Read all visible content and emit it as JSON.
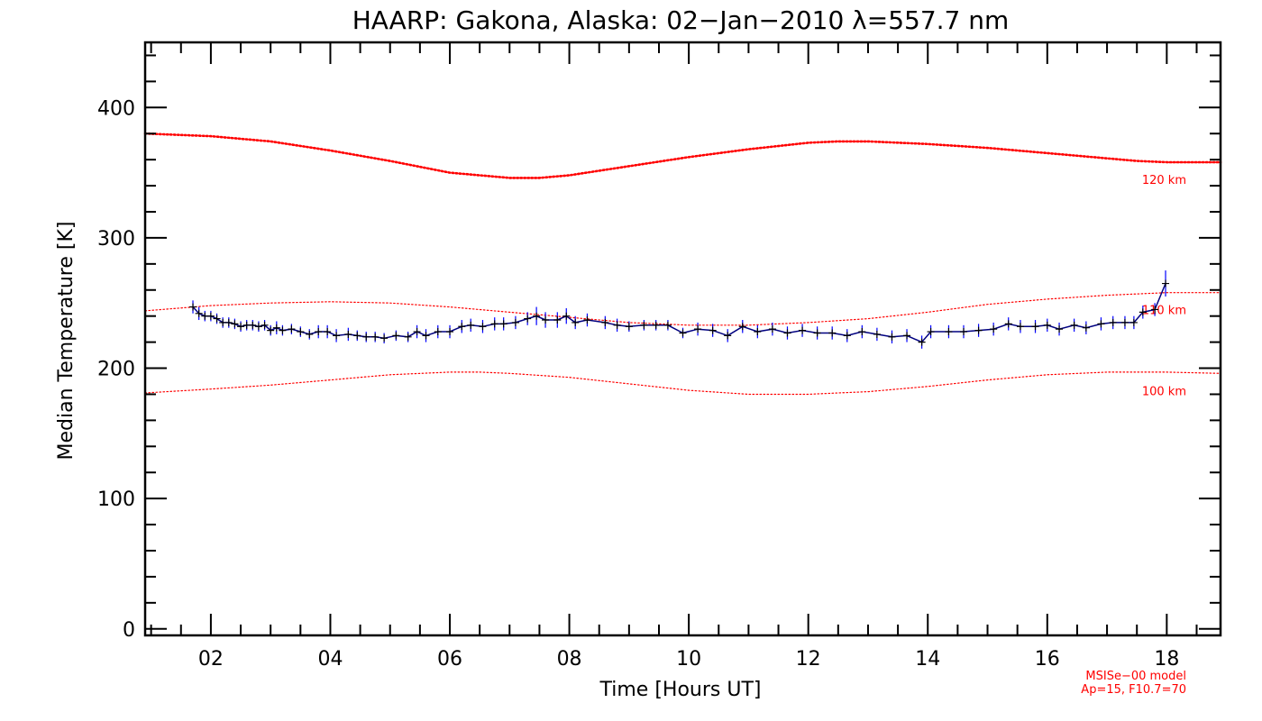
{
  "chart_data": {
    "type": "line",
    "title": "HAARP: Gakona,  Alaska: 02−Jan−2010 λ=557.7 nm",
    "xlabel": "Time [Hours UT]",
    "ylabel": "Median Temperature [K]",
    "xlim": [
      0.9,
      18.9
    ],
    "ylim": [
      -5,
      450
    ],
    "x_ticks": [
      2,
      4,
      6,
      8,
      10,
      12,
      14,
      16,
      18
    ],
    "x_tick_labels": [
      "02",
      "04",
      "06",
      "08",
      "10",
      "12",
      "14",
      "16",
      "18"
    ],
    "y_ticks": [
      0,
      100,
      200,
      300,
      400
    ],
    "y_tick_labels": [
      "0",
      "100",
      "200",
      "300",
      "400"
    ],
    "colors": {
      "measured": "#000080",
      "error": "#0000ff",
      "model": "#ff0000",
      "axes": "#000000"
    },
    "measured": {
      "x": [
        1.7,
        1.8,
        1.9,
        2.0,
        2.1,
        2.2,
        2.3,
        2.4,
        2.5,
        2.6,
        2.7,
        2.8,
        2.9,
        3.0,
        3.1,
        3.2,
        3.35,
        3.5,
        3.65,
        3.8,
        3.95,
        4.1,
        4.3,
        4.45,
        4.6,
        4.75,
        4.9,
        5.1,
        5.3,
        5.45,
        5.6,
        5.8,
        6.0,
        6.2,
        6.35,
        6.55,
        6.75,
        6.9,
        7.1,
        7.3,
        7.45,
        7.6,
        7.8,
        7.95,
        8.1,
        8.3,
        8.6,
        8.8,
        9.0,
        9.25,
        9.45,
        9.65,
        9.9,
        10.15,
        10.4,
        10.65,
        10.9,
        11.15,
        11.4,
        11.65,
        11.9,
        12.15,
        12.4,
        12.65,
        12.9,
        13.15,
        13.4,
        13.65,
        13.9,
        14.05,
        14.35,
        14.6,
        14.85,
        15.1,
        15.35,
        15.55,
        15.8,
        16.0,
        16.2,
        16.45,
        16.65,
        16.9,
        17.1,
        17.3,
        17.45,
        17.6,
        17.8,
        17.98
      ],
      "y": [
        247,
        242,
        240,
        240,
        238,
        235,
        235,
        234,
        232,
        233,
        233,
        232,
        233,
        229,
        231,
        229,
        230,
        228,
        226,
        228,
        228,
        225,
        226,
        225,
        224,
        224,
        223,
        225,
        224,
        228,
        225,
        228,
        228,
        232,
        233,
        232,
        234,
        234,
        235,
        238,
        240,
        237,
        237,
        240,
        235,
        237,
        235,
        233,
        232,
        233,
        233,
        233,
        227,
        230,
        229,
        225,
        232,
        228,
        230,
        227,
        229,
        227,
        227,
        225,
        228,
        226,
        224,
        225,
        220,
        228,
        228,
        228,
        229,
        230,
        234,
        232,
        232,
        233,
        230,
        233,
        231,
        234,
        235,
        235,
        235,
        243,
        245,
        265
      ],
      "err": [
        5,
        5,
        4,
        4,
        4,
        4,
        4,
        4,
        4,
        4,
        4,
        4,
        4,
        4,
        5,
        4,
        4,
        4,
        4,
        5,
        5,
        5,
        5,
        4,
        4,
        4,
        4,
        4,
        4,
        5,
        5,
        5,
        5,
        5,
        5,
        5,
        5,
        5,
        5,
        5,
        7,
        6,
        6,
        6,
        5,
        5,
        5,
        5,
        4,
        4,
        4,
        4,
        4,
        5,
        5,
        5,
        5,
        5,
        5,
        5,
        5,
        5,
        5,
        5,
        5,
        5,
        5,
        5,
        5,
        5,
        5,
        5,
        5,
        5,
        5,
        5,
        5,
        5,
        5,
        5,
        5,
        5,
        5,
        5,
        5,
        5,
        5,
        10
      ]
    },
    "model_curves": [
      {
        "name": "120 km",
        "x": [
          0.9,
          2.0,
          3.0,
          4.0,
          5.0,
          6.0,
          7.0,
          7.5,
          8.0,
          9.0,
          10.0,
          11.0,
          12.0,
          12.5,
          13.0,
          14.0,
          15.0,
          16.0,
          17.0,
          17.5,
          18.0,
          18.9
        ],
        "y": [
          380,
          378,
          374,
          367,
          359,
          350,
          346,
          346,
          348,
          355,
          362,
          368,
          373,
          374,
          374,
          372,
          369,
          365,
          361,
          359,
          358,
          358
        ]
      },
      {
        "name": "110 km",
        "x": [
          0.9,
          2.0,
          3.0,
          4.0,
          5.0,
          6.0,
          7.0,
          8.0,
          9.0,
          10.0,
          11.0,
          12.0,
          13.0,
          14.0,
          15.0,
          16.0,
          17.0,
          18.0,
          18.9
        ],
        "y": [
          244,
          248,
          250,
          251,
          250,
          247,
          243,
          239,
          235,
          233,
          233,
          235,
          238,
          243,
          249,
          253,
          256,
          258,
          258
        ]
      },
      {
        "name": "100 km",
        "x": [
          0.9,
          2.0,
          3.0,
          4.0,
          5.0,
          6.0,
          6.5,
          7.0,
          8.0,
          9.0,
          10.0,
          11.0,
          11.5,
          12.0,
          12.5,
          13.0,
          14.0,
          15.0,
          16.0,
          17.0,
          18.0,
          18.9
        ],
        "y": [
          181,
          184,
          187,
          191,
          195,
          197,
          197,
          196,
          193,
          188,
          183,
          180,
          180,
          180,
          181,
          182,
          186,
          191,
          195,
          197,
          197,
          196
        ]
      }
    ],
    "footer": [
      "MSISe−00 model",
      "Ap=15, F10.7=70"
    ]
  }
}
